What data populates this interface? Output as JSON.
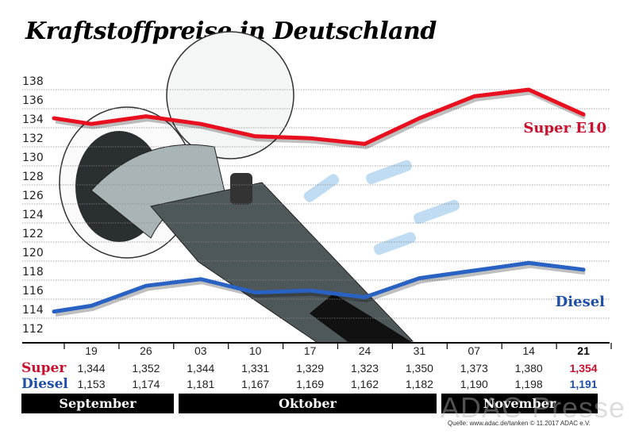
{
  "chart_data": {
    "type": "line",
    "title": "Kraftstoffpreise in Deutschland",
    "ylim": [
      112,
      138
    ],
    "yticks": [
      112,
      114,
      116,
      118,
      120,
      122,
      124,
      126,
      128,
      130,
      132,
      134,
      136,
      138
    ],
    "grid": true,
    "categories": [
      "",
      "19",
      "26",
      "03",
      "10",
      "17",
      "24",
      "31",
      "07",
      "14",
      "21"
    ],
    "months": [
      "September",
      "Oktober",
      "November"
    ],
    "series": [
      {
        "name": "Super E10",
        "color": "#e8101e",
        "label_color": "#c8102e",
        "values": [
          135.0,
          134.4,
          135.2,
          134.4,
          133.1,
          132.9,
          132.3,
          135.0,
          137.3,
          138.0,
          135.4
        ]
      },
      {
        "name": "Diesel",
        "color": "#2a62c4",
        "label_color": "#1f4fa8",
        "values": [
          114.7,
          115.3,
          117.4,
          118.1,
          116.7,
          116.9,
          116.2,
          118.2,
          119.0,
          119.8,
          119.1
        ]
      }
    ],
    "table": {
      "dates": [
        "19",
        "26",
        "03",
        "10",
        "17",
        "24",
        "31",
        "07",
        "14",
        "21"
      ],
      "super_label": "Super",
      "diesel_label": "Diesel",
      "super": [
        "1,344",
        "1,352",
        "1,344",
        "1,331",
        "1,329",
        "1,323",
        "1,350",
        "1,373",
        "1,380",
        "1,354"
      ],
      "diesel": [
        "1,153",
        "1,174",
        "1,181",
        "1,167",
        "1,169",
        "1,162",
        "1,182",
        "1,190",
        "1,198",
        "1,191"
      ]
    }
  },
  "source": "Quelle: www.adac.de/tanken   © 11.2017  ADAC e.V.",
  "watermark": "ADAC Presse"
}
